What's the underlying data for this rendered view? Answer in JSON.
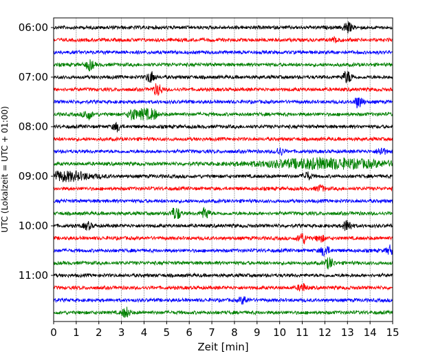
{
  "chart_data": {
    "type": "line",
    "title": "",
    "xlabel": "Zeit  [min]",
    "ylabel": "UTC (Lokalzeit = UTC + 01:00)",
    "xlim": [
      0,
      15
    ],
    "x_ticks": [
      0,
      1,
      2,
      3,
      4,
      5,
      6,
      7,
      8,
      9,
      10,
      11,
      12,
      13,
      14,
      15
    ],
    "y_tick_labels": [
      "06:00",
      "07:00",
      "08:00",
      "09:00",
      "10:00",
      "11:00"
    ],
    "grid": "vertical dotted at each minute",
    "trace_start_times": [
      "06:00",
      "06:15",
      "06:30",
      "06:45",
      "07:00",
      "07:15",
      "07:30",
      "07:45",
      "08:00",
      "08:15",
      "08:30",
      "08:45",
      "09:00",
      "09:15",
      "09:30",
      "09:45",
      "10:00",
      "10:15",
      "10:30",
      "10:45",
      "11:00",
      "11:15",
      "11:30",
      "11:45"
    ],
    "trace_colors": [
      "#000000",
      "#ff0000",
      "#0000ff",
      "#008000"
    ],
    "events": [
      {
        "trace": 0,
        "minute": 13.0,
        "amp": 1.1
      },
      {
        "trace": 1,
        "minute": 12.5,
        "amp": 0.6
      },
      {
        "trace": 3,
        "minute": 1.6,
        "amp": 1.0
      },
      {
        "trace": 4,
        "minute": 4.3,
        "amp": 1.2
      },
      {
        "trace": 4,
        "minute": 13.0,
        "amp": 1.6
      },
      {
        "trace": 5,
        "minute": 4.6,
        "amp": 1.4
      },
      {
        "trace": 6,
        "minute": 13.5,
        "amp": 1.3
      },
      {
        "trace": 7,
        "minute": 1.5,
        "amp": 1.1
      },
      {
        "trace": 7,
        "minute": 3.5,
        "amp": 1.4
      },
      {
        "trace": 7,
        "minute": 4.0,
        "amp": 1.5
      },
      {
        "trace": 7,
        "minute": 4.4,
        "amp": 1.1
      },
      {
        "trace": 8,
        "minute": 2.8,
        "amp": 0.8
      },
      {
        "trace": 10,
        "minute": 10.0,
        "amp": 0.7
      },
      {
        "trace": 10,
        "minute": 14.5,
        "amp": 0.8
      },
      {
        "trace": 11,
        "minute": 12.0,
        "amp": 1.0,
        "width": 2.8
      },
      {
        "trace": 12,
        "minute": 0.5,
        "amp": 0.9,
        "width": 1.2
      },
      {
        "trace": 12,
        "minute": 11.2,
        "amp": 0.8
      },
      {
        "trace": 13,
        "minute": 11.8,
        "amp": 0.6
      },
      {
        "trace": 15,
        "minute": 5.4,
        "amp": 1.8
      },
      {
        "trace": 15,
        "minute": 6.7,
        "amp": 1.2
      },
      {
        "trace": 16,
        "minute": 1.5,
        "amp": 0.7
      },
      {
        "trace": 16,
        "minute": 13.0,
        "amp": 1.3
      },
      {
        "trace": 17,
        "minute": 11.0,
        "amp": 1.2
      },
      {
        "trace": 17,
        "minute": 11.8,
        "amp": 0.7
      },
      {
        "trace": 18,
        "minute": 12.0,
        "amp": 1.1
      },
      {
        "trace": 18,
        "minute": 14.9,
        "amp": 0.9
      },
      {
        "trace": 19,
        "minute": 12.2,
        "amp": 1.1
      },
      {
        "trace": 21,
        "minute": 11.0,
        "amp": 0.8
      },
      {
        "trace": 22,
        "minute": 8.4,
        "amp": 0.7
      },
      {
        "trace": 23,
        "minute": 3.2,
        "amp": 1.0
      }
    ]
  }
}
